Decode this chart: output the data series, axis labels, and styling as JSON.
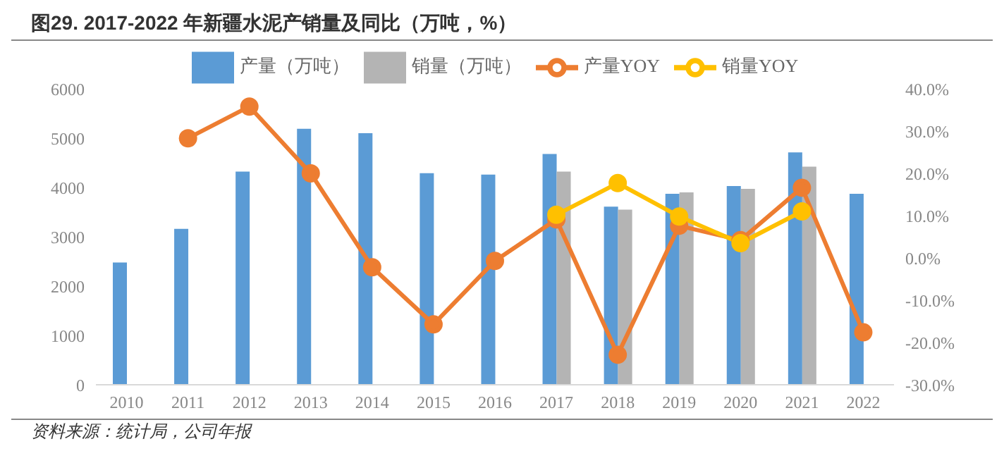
{
  "chart_data": {
    "type": "bar",
    "title": "图29. 2017-2022 年新疆水泥产销量及同比（万吨，%）",
    "categories": [
      "2010",
      "2011",
      "2012",
      "2013",
      "2014",
      "2015",
      "2016",
      "2017",
      "2018",
      "2019",
      "2020",
      "2021",
      "2022"
    ],
    "series": [
      {
        "name": "产量（万吨）",
        "color": "#5b9bd5",
        "values": [
          2480,
          3160,
          4320,
          5190,
          5100,
          4290,
          4260,
          4680,
          3610,
          3870,
          4030,
          4710,
          3870
        ]
      },
      {
        "name": "销量（万吨）",
        "color": "#b4b4b4",
        "values": [
          null,
          null,
          null,
          null,
          null,
          null,
          null,
          4320,
          3550,
          3900,
          3970,
          4420,
          null
        ]
      },
      {
        "name": "产量YOY",
        "type": "line",
        "axis": "y2",
        "color": "#ed7d31",
        "values": [
          null,
          28.3,
          35.8,
          20.0,
          -2.2,
          -15.7,
          -0.7,
          9.1,
          -22.9,
          7.6,
          4.2,
          16.6,
          -17.6
        ]
      },
      {
        "name": "销量YOY",
        "type": "line",
        "axis": "y2",
        "color": "#ffc000",
        "values": [
          null,
          null,
          null,
          null,
          null,
          null,
          null,
          10.2,
          17.7,
          9.8,
          3.5,
          11.0,
          null
        ]
      }
    ],
    "ylim": [
      0,
      6000
    ],
    "yticks": [
      0,
      1000,
      2000,
      3000,
      4000,
      5000,
      6000
    ],
    "y2lim": [
      -30,
      40
    ],
    "y2ticks": [
      {
        "value": -30,
        "label": "-30.0%"
      },
      {
        "value": -20,
        "label": "-20.0%"
      },
      {
        "value": -10,
        "label": "-10.0%"
      },
      {
        "value": 0,
        "label": "0.0%"
      },
      {
        "value": 10,
        "label": "10.0%"
      },
      {
        "value": 20,
        "label": "20.0%"
      },
      {
        "value": 30,
        "label": "30.0%"
      },
      {
        "value": 40,
        "label": "40.0%"
      }
    ],
    "grid": false,
    "legend": "top",
    "marker": "circle",
    "line_style": "solid",
    "annotations": [
      "资料来源：统计局，公司年报"
    ]
  }
}
